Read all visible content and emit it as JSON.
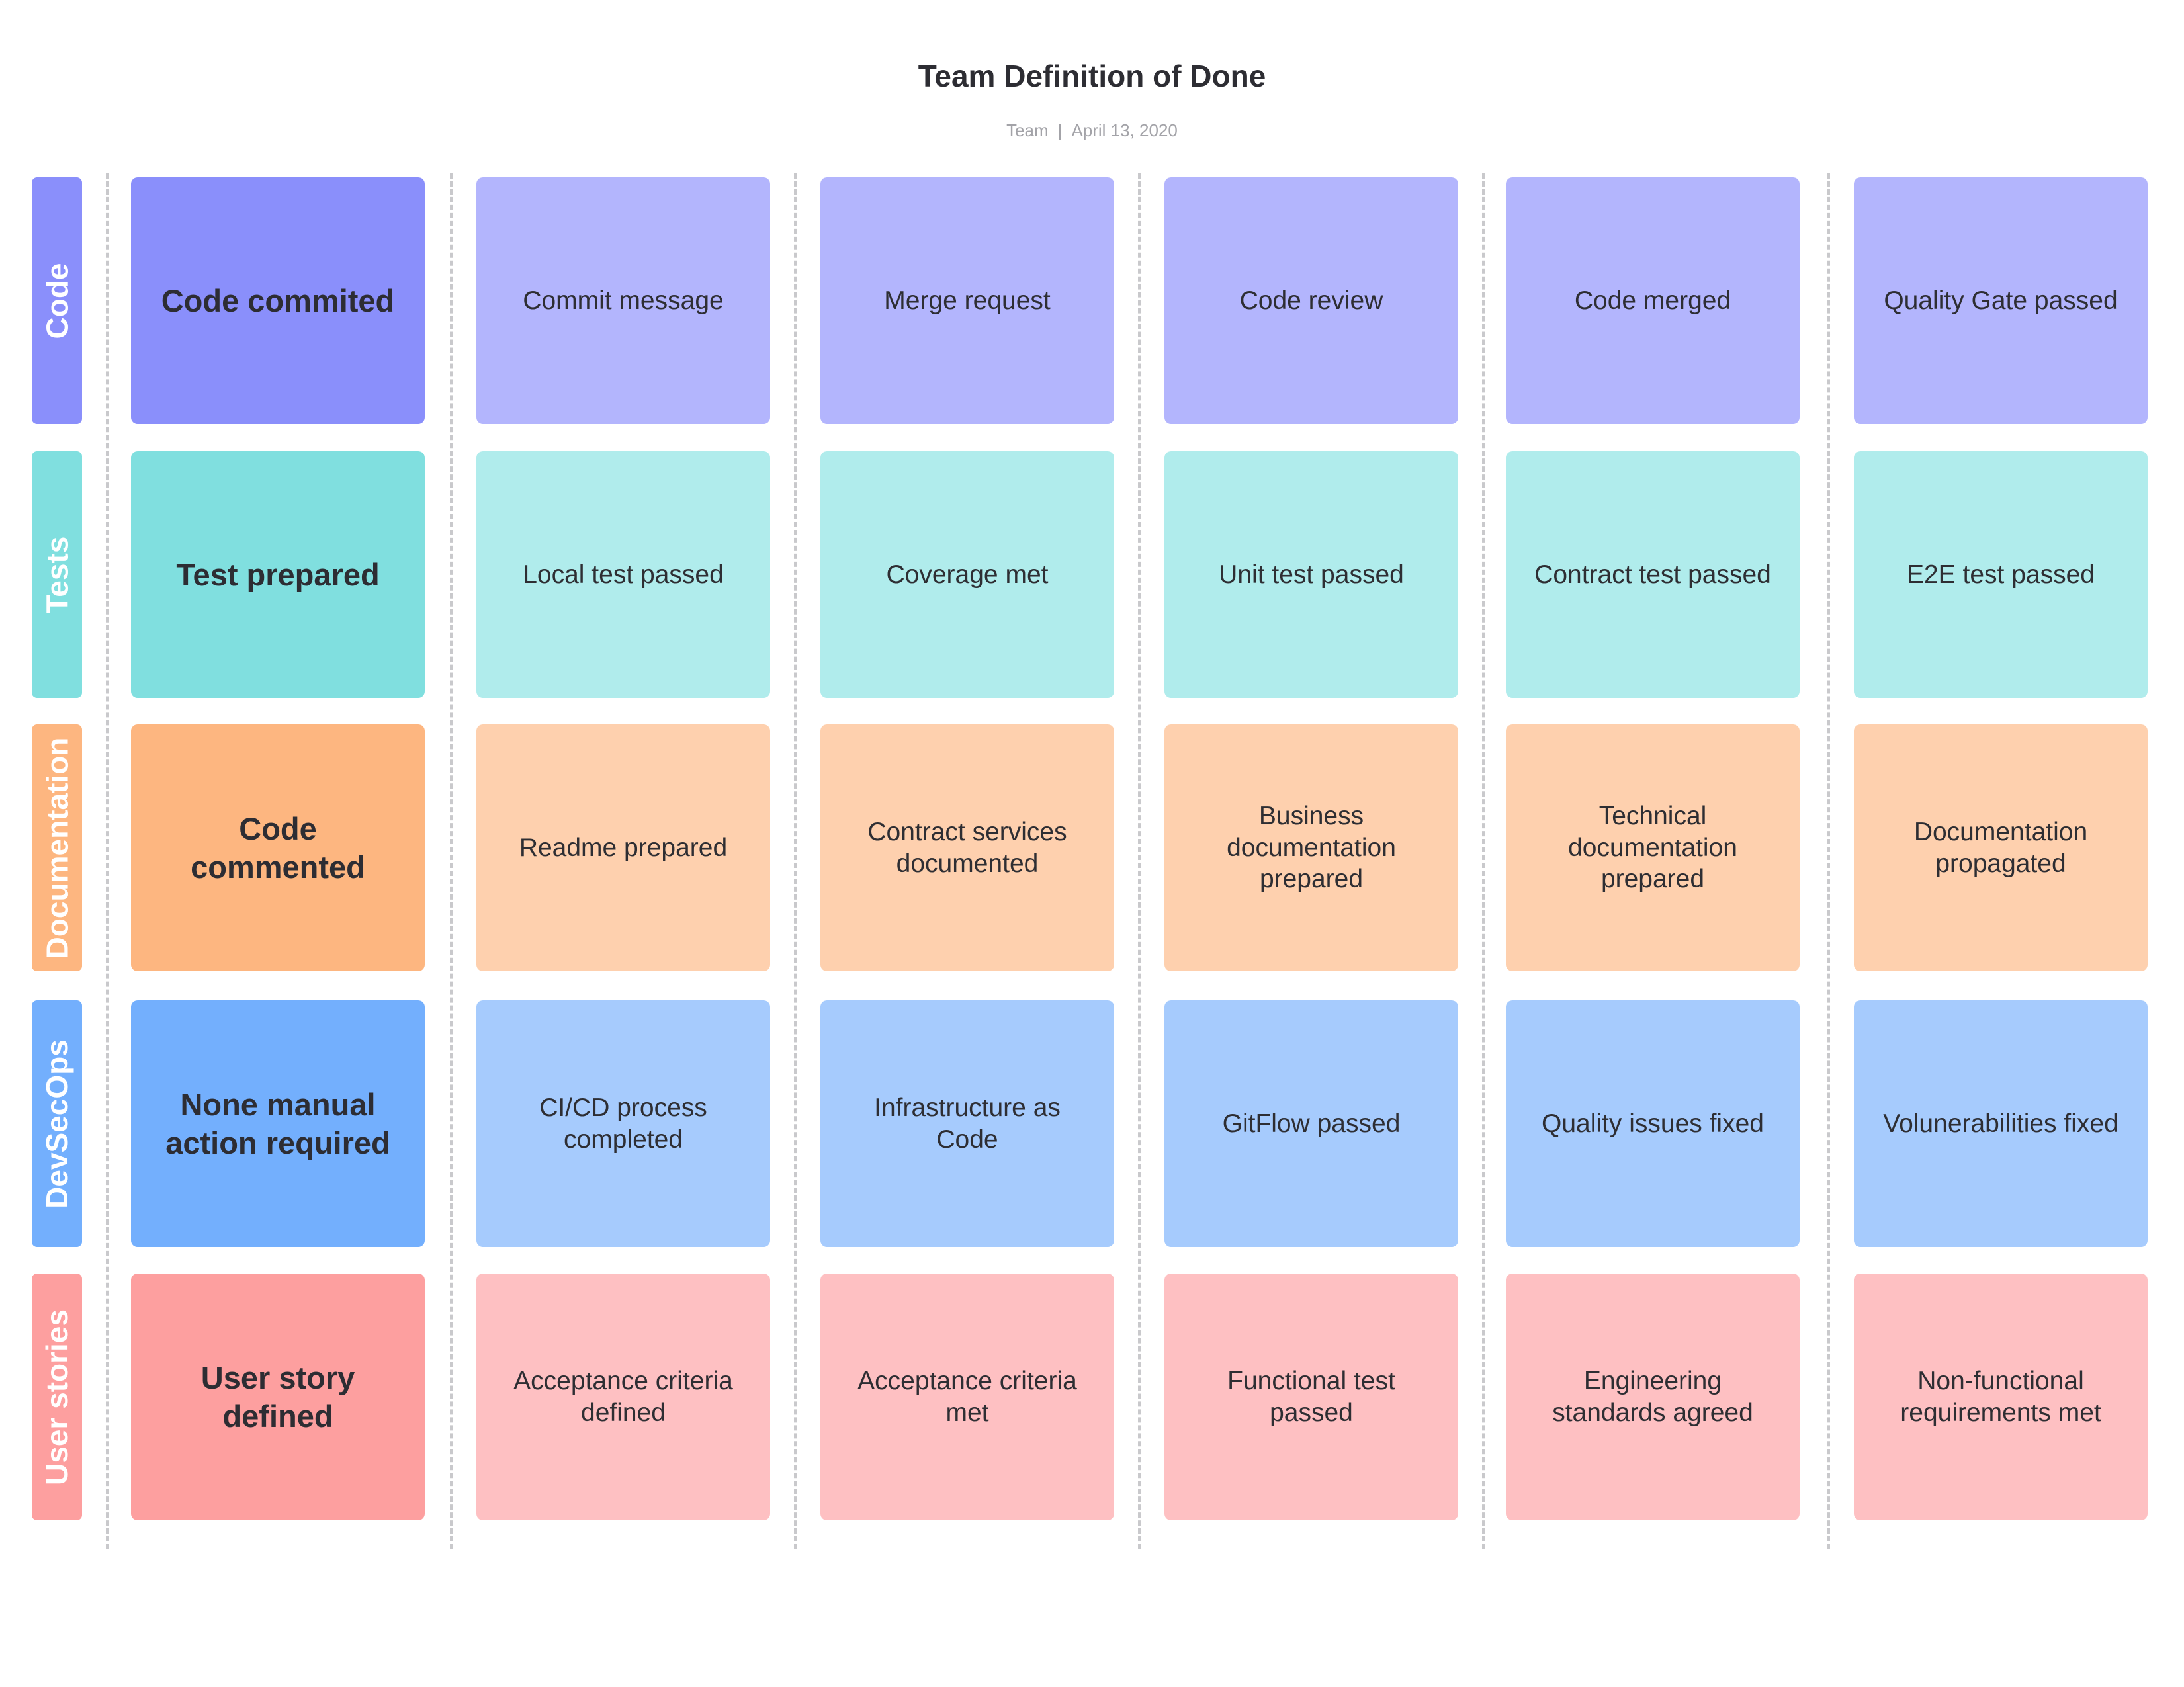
{
  "header": {
    "title": "Team Definition of Done",
    "team": "Team",
    "separator": "|",
    "date": "April 13, 2020"
  },
  "rows": [
    {
      "label": "Code",
      "colors": {
        "side": "#8a8ffb",
        "main": "#8a8ffb",
        "card": "#b3b5fd"
      },
      "main": "Code commited",
      "items": [
        "Commit message",
        "Merge request",
        "Code review",
        "Code merged",
        "Quality Gate passed"
      ]
    },
    {
      "label": "Tests",
      "colors": {
        "side": "#80dfdf",
        "main": "#80dfdf",
        "card": "#b0ecec"
      },
      "main": "Test prepared",
      "items": [
        "Local test passed",
        "Coverage met",
        "Unit test passed",
        "Contract test passed",
        "E2E test passed"
      ]
    },
    {
      "label": "Documentation",
      "colors": {
        "side": "#fdb680",
        "main": "#fdb680",
        "card": "#fed0ae"
      },
      "main": "Code commented",
      "items": [
        "Readme prepared",
        "Contract services documented",
        "Business documentation prepared",
        "Technical documentation prepared",
        "Documentation propagated"
      ]
    },
    {
      "label": "DevSecOps",
      "colors": {
        "side": "#73affd",
        "main": "#73affd",
        "card": "#a6cbfd"
      },
      "main": "None manual action required",
      "items": [
        "CI/CD process completed",
        "Infrastructure as Code",
        "GitFlow passed",
        "Quality issues fixed",
        "Volunerabilities fixed"
      ]
    },
    {
      "label": "User stories",
      "colors": {
        "side": "#fd9f9f",
        "main": "#fd9f9f",
        "card": "#fec0c2"
      },
      "main": "User story defined",
      "items": [
        "Acceptance criteria defined",
        "Acceptance criteria met",
        "Functional test passed",
        "Engineering standards agreed",
        "Non-functional requirements met"
      ]
    }
  ]
}
